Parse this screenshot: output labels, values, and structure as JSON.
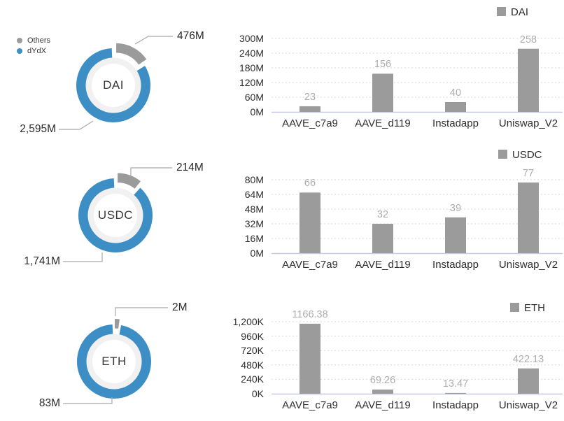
{
  "colors": {
    "blue": "#3E8EC6",
    "gray": "#9B9B9B",
    "bar": "#9B9B9B",
    "inner_ring": "#F1F1F1",
    "donut_hole": "#FFFFFF",
    "gridline": "#D9D9D9",
    "baseline": "#C7C7E6",
    "value_label": "#AEAEAE",
    "axis_text": "#2E2E2E",
    "leader_line": "#A9A9A9"
  },
  "donut_legend": {
    "items": [
      {
        "label": "Others",
        "color": "#9B9B9B"
      },
      {
        "label": "dYdX",
        "color": "#3E8EC6"
      }
    ]
  },
  "chart_data": [
    {
      "type": "pie",
      "id": "donut-dai",
      "center_label": "DAI",
      "slices": [
        {
          "name": "Others",
          "value": 476,
          "display": "476M"
        },
        {
          "name": "dYdX",
          "value": 2595,
          "display": "2,595M"
        }
      ]
    },
    {
      "type": "bar",
      "id": "bar-dai",
      "legend": "DAI",
      "categories": [
        "AAVE_c7a9",
        "AAVE_d119",
        "Instadapp",
        "Uniswap_V2"
      ],
      "values": [
        23,
        156,
        40,
        258
      ],
      "value_labels": [
        "23",
        "156",
        "40",
        "258"
      ],
      "ylabel_ticks": [
        "0M",
        "60M",
        "120M",
        "180M",
        "240M",
        "300M"
      ],
      "ymax": 300,
      "grid": true,
      "legend_position": "top-right"
    },
    {
      "type": "pie",
      "id": "donut-usdc",
      "center_label": "USDC",
      "slices": [
        {
          "name": "Others",
          "value": 214,
          "display": "214M"
        },
        {
          "name": "dYdX",
          "value": 1741,
          "display": "1,741M"
        }
      ]
    },
    {
      "type": "bar",
      "id": "bar-usdc",
      "legend": "USDC",
      "categories": [
        "AAVE_c7a9",
        "AAVE_d119",
        "Instadapp",
        "Uniswap_V2"
      ],
      "values": [
        66,
        32,
        39,
        77
      ],
      "value_labels": [
        "66",
        "32",
        "39",
        "77"
      ],
      "ylabel_ticks": [
        "0M",
        "16M",
        "32M",
        "48M",
        "64M",
        "80M"
      ],
      "ymax": 80,
      "grid": true,
      "legend_position": "top-right"
    },
    {
      "type": "pie",
      "id": "donut-eth",
      "center_label": "ETH",
      "slices": [
        {
          "name": "Others",
          "value": 2,
          "display": "2M"
        },
        {
          "name": "dYdX",
          "value": 83,
          "display": "83M"
        }
      ]
    },
    {
      "type": "bar",
      "id": "bar-eth",
      "legend": "ETH",
      "categories": [
        "AAVE_c7a9",
        "AAVE_d119",
        "Instadapp",
        "Uniswap_V2"
      ],
      "values": [
        1166.38,
        69.26,
        13.47,
        422.13
      ],
      "value_labels": [
        "1166.38",
        "69.26",
        "13.47",
        "422.13"
      ],
      "ylabel_ticks": [
        "0K",
        "240K",
        "480K",
        "720K",
        "960K",
        "1,200K"
      ],
      "ymax": 1200,
      "grid": true,
      "legend_position": "top-right"
    }
  ]
}
